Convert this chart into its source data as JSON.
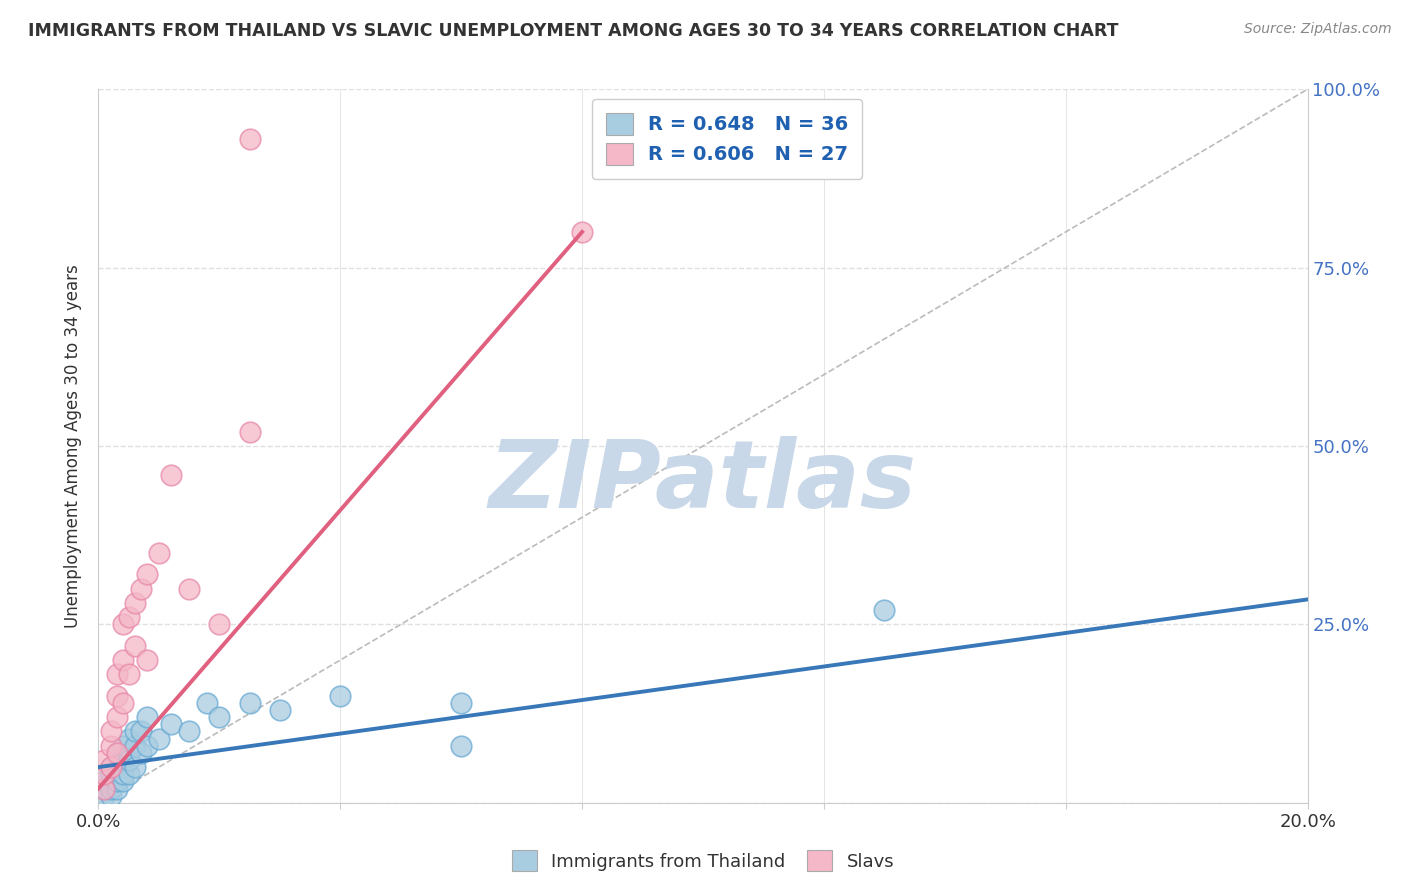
{
  "title": "IMMIGRANTS FROM THAILAND VS SLAVIC UNEMPLOYMENT AMONG AGES 30 TO 34 YEARS CORRELATION CHART",
  "source": "Source: ZipAtlas.com",
  "ylabel": "Unemployment Among Ages 30 to 34 years",
  "x_min": 0.0,
  "x_max": 0.2,
  "y_min": 0.0,
  "y_max": 1.0,
  "x_ticks": [
    0.0,
    0.04,
    0.08,
    0.12,
    0.16,
    0.2
  ],
  "x_tick_labels": [
    "0.0%",
    "",
    "",
    "",
    "",
    "20.0%"
  ],
  "y_ticks": [
    0.0,
    0.25,
    0.5,
    0.75,
    1.0
  ],
  "y_tick_labels": [
    "",
    "25.0%",
    "50.0%",
    "75.0%",
    "100.0%"
  ],
  "blue_R": 0.648,
  "blue_N": 36,
  "pink_R": 0.606,
  "pink_N": 27,
  "blue_color": "#a8cce0",
  "pink_color": "#f4b8c8",
  "blue_edge_color": "#6aaad4",
  "pink_edge_color": "#e888a8",
  "blue_line_color": "#3878b8",
  "pink_line_color": "#e06080",
  "blue_scatter": [
    [
      0.001,
      0.01
    ],
    [
      0.001,
      0.02
    ],
    [
      0.001,
      0.03
    ],
    [
      0.002,
      0.01
    ],
    [
      0.002,
      0.02
    ],
    [
      0.002,
      0.04
    ],
    [
      0.002,
      0.05
    ],
    [
      0.003,
      0.02
    ],
    [
      0.003,
      0.03
    ],
    [
      0.003,
      0.05
    ],
    [
      0.003,
      0.07
    ],
    [
      0.004,
      0.03
    ],
    [
      0.004,
      0.04
    ],
    [
      0.004,
      0.06
    ],
    [
      0.004,
      0.08
    ],
    [
      0.005,
      0.04
    ],
    [
      0.005,
      0.06
    ],
    [
      0.005,
      0.09
    ],
    [
      0.006,
      0.05
    ],
    [
      0.006,
      0.08
    ],
    [
      0.006,
      0.1
    ],
    [
      0.007,
      0.07
    ],
    [
      0.007,
      0.1
    ],
    [
      0.008,
      0.08
    ],
    [
      0.008,
      0.12
    ],
    [
      0.01,
      0.09
    ],
    [
      0.012,
      0.11
    ],
    [
      0.015,
      0.1
    ],
    [
      0.018,
      0.14
    ],
    [
      0.02,
      0.12
    ],
    [
      0.025,
      0.14
    ],
    [
      0.03,
      0.13
    ],
    [
      0.04,
      0.15
    ],
    [
      0.06,
      0.14
    ],
    [
      0.13,
      0.27
    ],
    [
      0.06,
      0.08
    ]
  ],
  "pink_scatter": [
    [
      0.001,
      0.02
    ],
    [
      0.001,
      0.04
    ],
    [
      0.001,
      0.06
    ],
    [
      0.002,
      0.05
    ],
    [
      0.002,
      0.08
    ],
    [
      0.002,
      0.1
    ],
    [
      0.003,
      0.07
    ],
    [
      0.003,
      0.12
    ],
    [
      0.003,
      0.15
    ],
    [
      0.003,
      0.18
    ],
    [
      0.004,
      0.14
    ],
    [
      0.004,
      0.2
    ],
    [
      0.004,
      0.25
    ],
    [
      0.005,
      0.18
    ],
    [
      0.005,
      0.26
    ],
    [
      0.006,
      0.22
    ],
    [
      0.006,
      0.28
    ],
    [
      0.007,
      0.3
    ],
    [
      0.008,
      0.2
    ],
    [
      0.008,
      0.32
    ],
    [
      0.01,
      0.35
    ],
    [
      0.012,
      0.46
    ],
    [
      0.015,
      0.3
    ],
    [
      0.02,
      0.25
    ],
    [
      0.025,
      0.52
    ],
    [
      0.025,
      0.93
    ],
    [
      0.08,
      0.8
    ]
  ],
  "blue_trend_x": [
    0.0,
    0.2
  ],
  "blue_trend_y": [
    0.05,
    0.285
  ],
  "pink_trend_x": [
    0.0,
    0.08
  ],
  "pink_trend_y": [
    0.02,
    0.8
  ],
  "diag_color": "#bbbbbb",
  "watermark": "ZIPatlas",
  "watermark_color": "#c8d8e8",
  "background_color": "#ffffff",
  "grid_color": "#e0e0e0",
  "text_color": "#333333",
  "axis_label_color": "#4472c4",
  "legend_text_color": "#2060b0"
}
